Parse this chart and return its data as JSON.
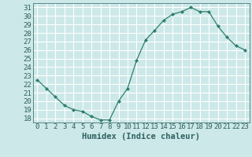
{
  "x": [
    0,
    1,
    2,
    3,
    4,
    5,
    6,
    7,
    8,
    9,
    10,
    11,
    12,
    13,
    14,
    15,
    16,
    17,
    18,
    19,
    20,
    21,
    22,
    23
  ],
  "y": [
    22.5,
    21.5,
    20.5,
    19.5,
    19.0,
    18.8,
    18.2,
    17.8,
    17.8,
    20.0,
    21.5,
    24.8,
    27.2,
    28.3,
    29.5,
    30.2,
    30.5,
    31.0,
    30.5,
    30.5,
    28.8,
    27.5,
    26.5,
    26.0
  ],
  "xlabel": "Humidex (Indice chaleur)",
  "ylim": [
    17.5,
    31.5
  ],
  "xlim": [
    -0.5,
    23.5
  ],
  "yticks": [
    18,
    19,
    20,
    21,
    22,
    23,
    24,
    25,
    26,
    27,
    28,
    29,
    30,
    31
  ],
  "xticks": [
    0,
    1,
    2,
    3,
    4,
    5,
    6,
    7,
    8,
    9,
    10,
    11,
    12,
    13,
    14,
    15,
    16,
    17,
    18,
    19,
    20,
    21,
    22,
    23
  ],
  "line_color": "#2d7f6e",
  "marker_color": "#2d7f6e",
  "bg_color": "#cde8e8",
  "grid_color": "#ffffff",
  "tick_label_color": "#2d6060",
  "xlabel_color": "#2d6060",
  "font_size": 6.5,
  "xlabel_font_size": 7.5
}
